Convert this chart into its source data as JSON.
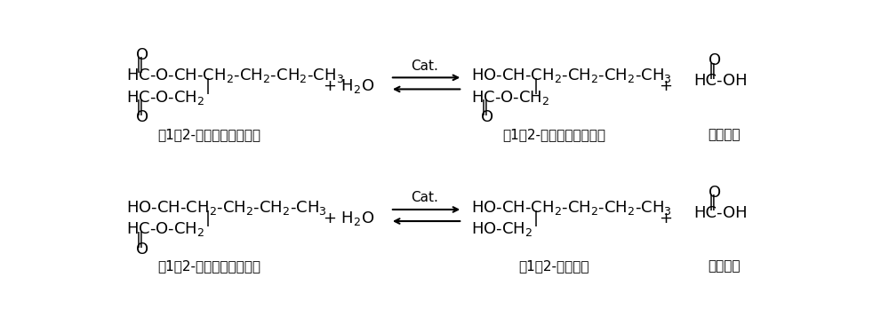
{
  "bg_color": "#ffffff",
  "fig_width": 10.0,
  "fig_height": 3.75,
  "dpi": 100,
  "reaction1": {
    "reactant_label": "（1，2-己二醇二甲酸酯）",
    "product1_label": "（1，2-己二醇单甲酸酯）",
    "product2_label": "（甲酸）"
  },
  "reaction2": {
    "reactant_label": "（1，2-己二醇单甲酸酯）",
    "product1_label": "（1，2-己二醇）",
    "product2_label": "（甲酸）"
  },
  "cat_label": "Cat.",
  "h2o_label": "+ H₂O",
  "plus": "+"
}
